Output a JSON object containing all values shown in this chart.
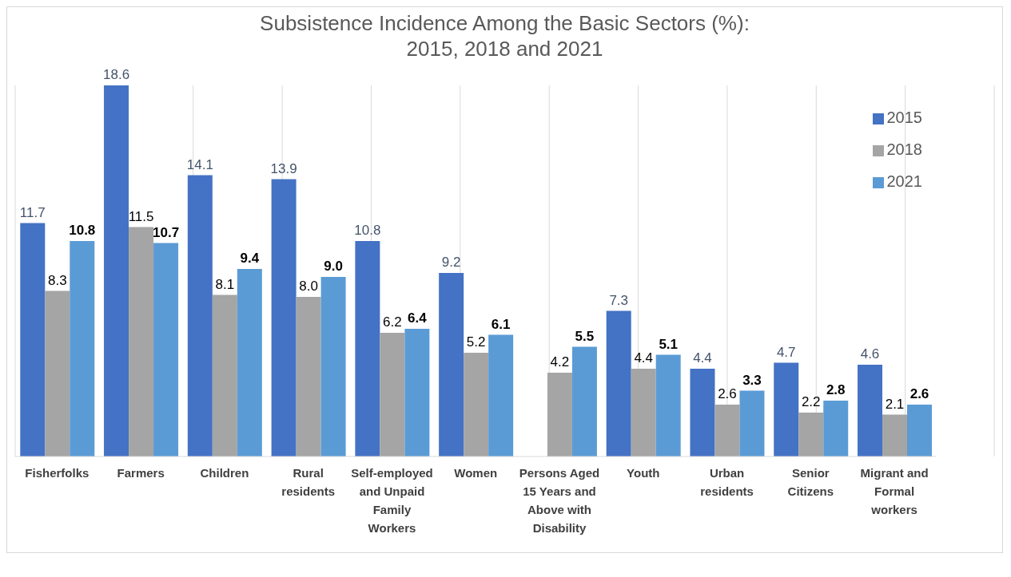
{
  "chart_data": {
    "type": "bar",
    "title": "Subsistence Incidence Among the Basic Sectors (%):\n2015, 2018 and 2021",
    "categories": [
      "Fisherfolks",
      "Farmers",
      "Children",
      "Rural residents",
      "Self-employed and Unpaid Family Workers",
      "Women",
      "Persons Aged 15 Years and Above with Disability",
      "Youth",
      "Urban residents",
      "Senior Citizens",
      "Migrant and Formal workers"
    ],
    "series": [
      {
        "name": "2015",
        "color": "#4472c4",
        "values": [
          11.7,
          18.6,
          14.1,
          13.9,
          10.8,
          9.2,
          null,
          7.3,
          4.4,
          4.7,
          4.6
        ],
        "value_labels": [
          "11.7",
          "18.6",
          "14.1",
          "13.9",
          "10.8",
          "9.2",
          null,
          "7.3",
          "4.4",
          "4.7",
          "4.6"
        ]
      },
      {
        "name": "2018",
        "color": "#a5a5a5",
        "values": [
          8.3,
          11.5,
          8.1,
          8.0,
          6.2,
          5.2,
          4.2,
          4.4,
          2.6,
          2.2,
          2.1
        ],
        "value_labels": [
          "8.3",
          "11.5",
          "8.1",
          "8.0",
          "6.2",
          "5.2",
          "4.2",
          "4.4",
          "2.6",
          "2.2",
          "2.1"
        ]
      },
      {
        "name": "2021",
        "color": "#5b9bd5",
        "values": [
          10.8,
          10.7,
          9.4,
          9.0,
          6.4,
          6.1,
          5.5,
          5.1,
          3.3,
          2.8,
          2.6
        ],
        "value_labels": [
          "10.8",
          "10.7",
          "9.4",
          "9.0",
          "6.4",
          "6.1",
          "5.5",
          "5.1",
          "3.3",
          "2.8",
          "2.6"
        ]
      }
    ],
    "grid": "x",
    "legend": "right"
  }
}
